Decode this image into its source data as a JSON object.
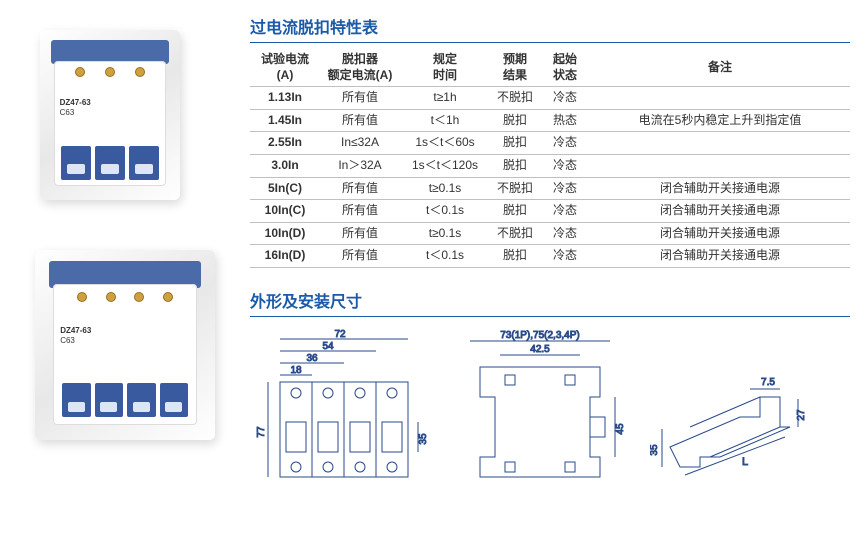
{
  "titles": {
    "table": "过电流脱扣特性表",
    "dims": "外形及安装尺寸"
  },
  "breaker": {
    "model1": "DZ47-63",
    "model2": "C63"
  },
  "table": {
    "headers": [
      "试验电流\n(A)",
      "脱扣器\n额定电流(A)",
      "规定\n时间",
      "预期\n结果",
      "起始\n状态",
      "备注"
    ],
    "rows": [
      [
        "1.13In",
        "所有值",
        "t≥1h",
        "不脱扣",
        "冷态",
        ""
      ],
      [
        "1.45In",
        "所有值",
        "t＜1h",
        "脱扣",
        "热态",
        "电流在5秒内稳定上升到指定值"
      ],
      [
        "2.55In",
        "In≤32A",
        "1s＜t＜60s",
        "脱扣",
        "冷态",
        ""
      ],
      [
        "3.0In",
        "In＞32A",
        "1s＜t＜120s",
        "脱扣",
        "冷态",
        ""
      ],
      [
        "5In(C)",
        "所有值",
        "t≥0.1s",
        "不脱扣",
        "冷态",
        "闭合辅助开关接通电源"
      ],
      [
        "10In(C)",
        "所有值",
        "t＜0.1s",
        "脱扣",
        "冷态",
        "闭合辅助开关接通电源"
      ],
      [
        "10In(D)",
        "所有值",
        "t≥0.1s",
        "不脱扣",
        "冷态",
        "闭合辅助开关接通电源"
      ],
      [
        "16In(D)",
        "所有值",
        "t＜0.1s",
        "脱扣",
        "冷态",
        "闭合辅助开关接通电源"
      ]
    ]
  },
  "dimensions": {
    "front": {
      "total_width": "72",
      "w3": "54",
      "w2": "36",
      "w1": "18",
      "height": "77",
      "slot_h": "35"
    },
    "side": {
      "label_top": "73(1P),75(2,3,4P)",
      "width": "42.5",
      "height": "45"
    },
    "rail": {
      "w_top": "7.5",
      "h": "35",
      "h_inner": "27",
      "length": "L"
    },
    "colors": {
      "line": "#2a4a8a",
      "fill": "#ffffff"
    }
  }
}
